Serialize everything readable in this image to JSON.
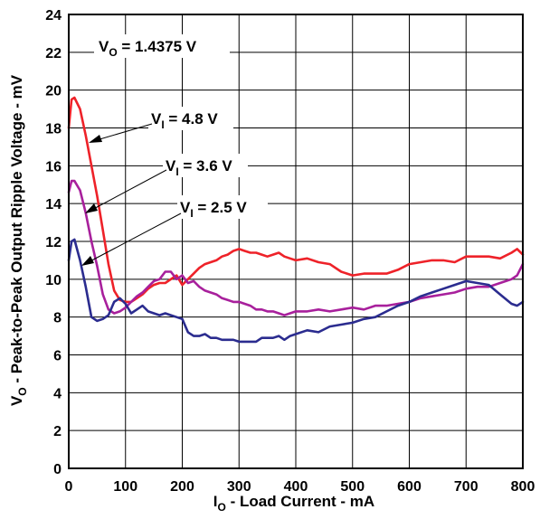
{
  "chart_data": {
    "type": "line",
    "xlabel": {
      "main": "I",
      "sub": "O",
      "rest": " - Load Current - mA"
    },
    "ylabel": {
      "main": "V",
      "sub": "O",
      "rest": " - Peak-to-Peak Output Ripple Voltage - mV"
    },
    "xlim": [
      0,
      800
    ],
    "ylim": [
      0,
      24
    ],
    "xticks": [
      0,
      100,
      200,
      300,
      400,
      500,
      600,
      700,
      800
    ],
    "yticks": [
      0,
      2,
      4,
      6,
      8,
      10,
      12,
      14,
      16,
      18,
      20,
      22,
      24
    ],
    "grid": true,
    "annotations": {
      "vo": {
        "main": "V",
        "sub": "O",
        "rest": " = 1.4375 V"
      },
      "vi48": {
        "main": "V",
        "sub": "I",
        "rest": " = 4.8 V"
      },
      "vi36": {
        "main": "V",
        "sub": "I",
        "rest": " = 3.6 V"
      },
      "vi25": {
        "main": "V",
        "sub": "I",
        "rest": " = 2.5 V"
      }
    },
    "series": [
      {
        "label_ref": "vi48",
        "color": "#ee2229",
        "x": [
          0,
          5,
          10,
          20,
          30,
          40,
          50,
          60,
          70,
          80,
          90,
          100,
          110,
          120,
          130,
          140,
          150,
          160,
          170,
          180,
          190,
          200,
          210,
          220,
          230,
          240,
          250,
          260,
          270,
          280,
          290,
          300,
          310,
          320,
          330,
          340,
          350,
          360,
          370,
          380,
          390,
          400,
          420,
          440,
          460,
          480,
          500,
          520,
          540,
          560,
          580,
          600,
          620,
          640,
          660,
          680,
          700,
          720,
          740,
          760,
          780,
          790,
          800
        ],
        "y": [
          18.0,
          19.5,
          19.6,
          19.0,
          17.6,
          16.0,
          14.4,
          12.6,
          10.8,
          9.4,
          8.9,
          8.8,
          8.8,
          9.0,
          9.2,
          9.5,
          9.7,
          9.8,
          9.8,
          10.0,
          10.2,
          9.7,
          10.0,
          10.3,
          10.6,
          10.8,
          10.9,
          11.0,
          11.2,
          11.3,
          11.5,
          11.6,
          11.5,
          11.4,
          11.4,
          11.3,
          11.2,
          11.3,
          11.4,
          11.2,
          11.1,
          11.0,
          11.1,
          10.9,
          10.8,
          10.4,
          10.2,
          10.3,
          10.3,
          10.3,
          10.5,
          10.8,
          10.9,
          11.0,
          11.0,
          10.9,
          11.2,
          11.2,
          11.2,
          11.1,
          11.4,
          11.6,
          11.3
        ]
      },
      {
        "label_ref": "vi36",
        "color": "#a8209c",
        "x": [
          0,
          5,
          10,
          20,
          30,
          40,
          50,
          60,
          70,
          80,
          90,
          100,
          110,
          120,
          130,
          140,
          150,
          160,
          170,
          180,
          190,
          200,
          210,
          220,
          230,
          240,
          250,
          260,
          270,
          280,
          290,
          300,
          310,
          320,
          330,
          340,
          350,
          360,
          370,
          380,
          390,
          400,
          420,
          440,
          460,
          480,
          500,
          520,
          540,
          560,
          580,
          600,
          620,
          640,
          660,
          680,
          700,
          720,
          740,
          760,
          780,
          790,
          800
        ],
        "y": [
          14.6,
          15.2,
          15.2,
          14.7,
          13.5,
          12.0,
          10.7,
          9.2,
          8.4,
          8.2,
          8.3,
          8.5,
          8.8,
          9.1,
          9.3,
          9.6,
          9.9,
          10.0,
          10.4,
          10.4,
          10.0,
          10.2,
          9.8,
          9.9,
          9.6,
          9.4,
          9.3,
          9.2,
          9.0,
          8.9,
          8.8,
          8.8,
          8.7,
          8.6,
          8.4,
          8.4,
          8.3,
          8.3,
          8.2,
          8.1,
          8.2,
          8.3,
          8.3,
          8.4,
          8.3,
          8.4,
          8.5,
          8.4,
          8.6,
          8.6,
          8.7,
          8.8,
          9.0,
          9.1,
          9.2,
          9.3,
          9.5,
          9.6,
          9.6,
          9.8,
          10.0,
          10.2,
          10.8
        ]
      },
      {
        "label_ref": "vi25",
        "color": "#2b2c8f",
        "x": [
          0,
          5,
          10,
          20,
          30,
          40,
          50,
          60,
          70,
          80,
          90,
          100,
          110,
          120,
          130,
          140,
          150,
          160,
          170,
          180,
          190,
          200,
          210,
          220,
          230,
          240,
          250,
          260,
          270,
          280,
          290,
          300,
          310,
          320,
          330,
          340,
          350,
          360,
          370,
          380,
          390,
          400,
          420,
          440,
          460,
          480,
          500,
          520,
          540,
          560,
          580,
          600,
          620,
          640,
          660,
          680,
          700,
          720,
          740,
          760,
          780,
          790,
          800
        ],
        "y": [
          11.0,
          12.0,
          12.1,
          11.0,
          9.6,
          8.0,
          7.8,
          7.9,
          8.1,
          8.8,
          9.0,
          8.7,
          8.2,
          8.4,
          8.6,
          8.3,
          8.2,
          8.1,
          8.2,
          8.1,
          8.0,
          7.9,
          7.2,
          7.0,
          7.0,
          7.1,
          6.9,
          6.9,
          6.8,
          6.8,
          6.8,
          6.7,
          6.7,
          6.7,
          6.7,
          6.9,
          6.9,
          6.9,
          7.0,
          6.8,
          7.0,
          7.1,
          7.3,
          7.2,
          7.5,
          7.6,
          7.7,
          7.9,
          8.0,
          8.3,
          8.6,
          8.8,
          9.1,
          9.3,
          9.5,
          9.7,
          9.9,
          9.8,
          9.7,
          9.2,
          8.7,
          8.6,
          8.8
        ]
      }
    ]
  }
}
